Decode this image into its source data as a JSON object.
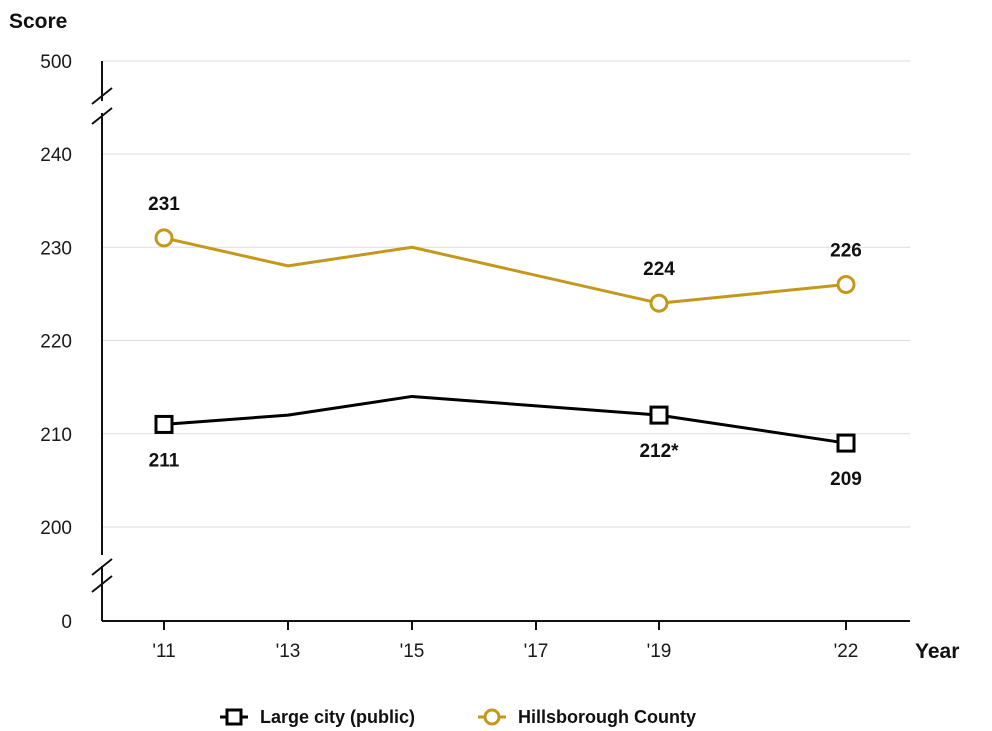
{
  "chart_data": {
    "type": "line",
    "ylabel": "Score",
    "xlabel": "Year",
    "x": [
      "'11",
      "'13",
      "'15",
      "'17",
      "'19",
      "'22"
    ],
    "yticks": [
      "500",
      "240",
      "230",
      "220",
      "210",
      "200",
      "0"
    ],
    "ylim": [
      200,
      240
    ],
    "axis_break": true,
    "grid": true,
    "legend_position": "bottom",
    "series": [
      {
        "name": "Large city (public)",
        "marker": "square",
        "color": "#000000",
        "points": [
          {
            "x": "'11",
            "y": 211,
            "label": "211",
            "marker": true,
            "label_pos": "below"
          },
          {
            "x": "'13",
            "y": 212,
            "label": null,
            "marker": false
          },
          {
            "x": "'15",
            "y": 214,
            "label": null,
            "marker": false
          },
          {
            "x": "'19",
            "y": 212,
            "label": "212*",
            "marker": true,
            "label_pos": "below"
          },
          {
            "x": "'22",
            "y": 209,
            "label": "209",
            "marker": true,
            "label_pos": "below"
          }
        ]
      },
      {
        "name": "Hillsborough County",
        "marker": "circle",
        "color": "#C4981C",
        "points": [
          {
            "x": "'11",
            "y": 231,
            "label": "231",
            "marker": true,
            "label_pos": "above"
          },
          {
            "x": "'13",
            "y": 228,
            "label": null,
            "marker": false
          },
          {
            "x": "'15",
            "y": 230,
            "label": null,
            "marker": false
          },
          {
            "x": "'19",
            "y": 224,
            "label": "224",
            "marker": true,
            "label_pos": "above"
          },
          {
            "x": "'22",
            "y": 226,
            "label": "226",
            "marker": true,
            "label_pos": "above"
          }
        ]
      }
    ]
  }
}
